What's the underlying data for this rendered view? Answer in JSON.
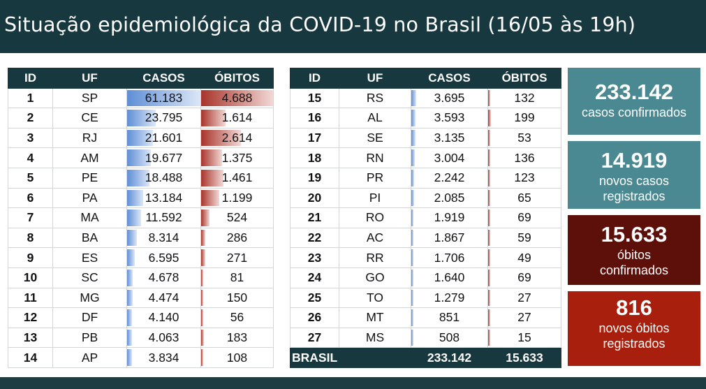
{
  "title": "Situação epidemiológica da COVID-19 no Brasil (16/05 às 19h)",
  "colors": {
    "header": "#17383e",
    "casos_bar": "#5f8ed6",
    "obitos_bar": "#a8342a",
    "card_teal": "#4b8992",
    "card_darkred": "#5d0f0a",
    "card_red": "#a8200d"
  },
  "table_headers": [
    "ID",
    "UF",
    "CASOS",
    "ÓBITOS"
  ],
  "left_rows": [
    {
      "id": "1",
      "uf": "SP",
      "casos": "61.183",
      "obitos": "4.688",
      "c": 61183,
      "o": 4688
    },
    {
      "id": "2",
      "uf": "CE",
      "casos": "23.795",
      "obitos": "1.614",
      "c": 23795,
      "o": 1614
    },
    {
      "id": "3",
      "uf": "RJ",
      "casos": "21.601",
      "obitos": "2.614",
      "c": 21601,
      "o": 2614
    },
    {
      "id": "4",
      "uf": "AM",
      "casos": "19.677",
      "obitos": "1.375",
      "c": 19677,
      "o": 1375
    },
    {
      "id": "5",
      "uf": "PE",
      "casos": "18.488",
      "obitos": "1.461",
      "c": 18488,
      "o": 1461
    },
    {
      "id": "6",
      "uf": "PA",
      "casos": "13.184",
      "obitos": "1.199",
      "c": 13184,
      "o": 1199
    },
    {
      "id": "7",
      "uf": "MA",
      "casos": "11.592",
      "obitos": "524",
      "c": 11592,
      "o": 524
    },
    {
      "id": "8",
      "uf": "BA",
      "casos": "8.314",
      "obitos": "286",
      "c": 8314,
      "o": 286
    },
    {
      "id": "9",
      "uf": "ES",
      "casos": "6.595",
      "obitos": "271",
      "c": 6595,
      "o": 271
    },
    {
      "id": "10",
      "uf": "SC",
      "casos": "4.678",
      "obitos": "81",
      "c": 4678,
      "o": 81
    },
    {
      "id": "11",
      "uf": "MG",
      "casos": "4.474",
      "obitos": "150",
      "c": 4474,
      "o": 150
    },
    {
      "id": "12",
      "uf": "DF",
      "casos": "4.140",
      "obitos": "56",
      "c": 4140,
      "o": 56
    },
    {
      "id": "13",
      "uf": "PB",
      "casos": "4.063",
      "obitos": "183",
      "c": 4063,
      "o": 183
    },
    {
      "id": "14",
      "uf": "AP",
      "casos": "3.834",
      "obitos": "108",
      "c": 3834,
      "o": 108
    }
  ],
  "right_rows": [
    {
      "id": "15",
      "uf": "RS",
      "casos": "3.695",
      "obitos": "132",
      "c": 3695,
      "o": 132
    },
    {
      "id": "16",
      "uf": "AL",
      "casos": "3.593",
      "obitos": "199",
      "c": 3593,
      "o": 199
    },
    {
      "id": "17",
      "uf": "SE",
      "casos": "3.135",
      "obitos": "53",
      "c": 3135,
      "o": 53
    },
    {
      "id": "18",
      "uf": "RN",
      "casos": "3.004",
      "obitos": "136",
      "c": 3004,
      "o": 136
    },
    {
      "id": "19",
      "uf": "PR",
      "casos": "2.242",
      "obitos": "123",
      "c": 2242,
      "o": 123
    },
    {
      "id": "20",
      "uf": "PI",
      "casos": "2.085",
      "obitos": "65",
      "c": 2085,
      "o": 65
    },
    {
      "id": "21",
      "uf": "RO",
      "casos": "1.919",
      "obitos": "69",
      "c": 1919,
      "o": 69
    },
    {
      "id": "22",
      "uf": "AC",
      "casos": "1.867",
      "obitos": "59",
      "c": 1867,
      "o": 59
    },
    {
      "id": "23",
      "uf": "RR",
      "casos": "1.706",
      "obitos": "49",
      "c": 1706,
      "o": 49
    },
    {
      "id": "24",
      "uf": "GO",
      "casos": "1.640",
      "obitos": "69",
      "c": 1640,
      "o": 69
    },
    {
      "id": "25",
      "uf": "TO",
      "casos": "1.279",
      "obitos": "27",
      "c": 1279,
      "o": 27
    },
    {
      "id": "26",
      "uf": "MT",
      "casos": "851",
      "obitos": "27",
      "c": 851,
      "o": 27
    },
    {
      "id": "27",
      "uf": "MS",
      "casos": "508",
      "obitos": "15",
      "c": 508,
      "o": 15
    }
  ],
  "total": {
    "label": "BRASIL",
    "casos": "233.142",
    "obitos": "15.633"
  },
  "cards": [
    {
      "big": "233.142",
      "lines": [
        "casos confirmados"
      ]
    },
    {
      "big": "14.919",
      "lines": [
        "novos casos",
        "registrados"
      ]
    },
    {
      "big": "15.633",
      "lines": [
        "óbitos",
        "confirmados"
      ]
    },
    {
      "big": "816",
      "lines": [
        "novos óbitos",
        "registrados"
      ]
    }
  ]
}
